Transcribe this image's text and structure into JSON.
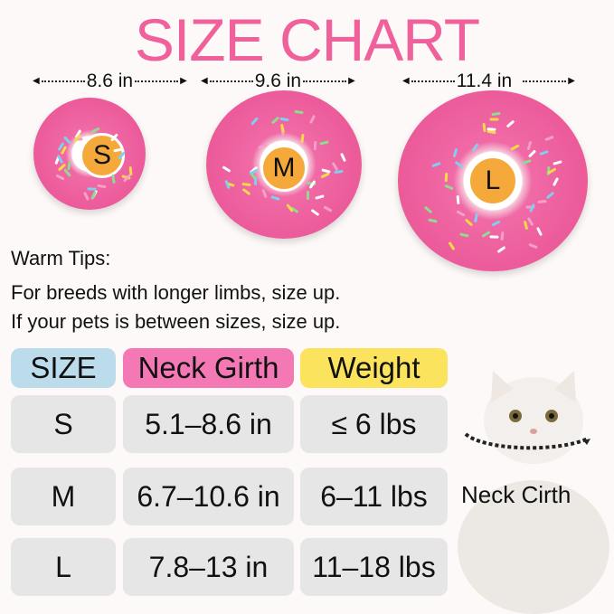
{
  "title": "SIZE CHART",
  "dimensions": [
    "8.6 in",
    "9.6 in",
    "11.4 in"
  ],
  "sizes": [
    "S",
    "M",
    "L"
  ],
  "tips": {
    "heading": "Warm Tips:",
    "lines": [
      "For breeds with longer limbs, size up.",
      "If your pets is between sizes, size up."
    ]
  },
  "table": {
    "headers": [
      "SIZE",
      "Neck Girth",
      "Weight"
    ],
    "header_colors": [
      "#bcdcec",
      "#f478b4",
      "#fbe35e"
    ],
    "rows": [
      [
        "S",
        "5.1–8.6 in",
        "≤ 6 lbs"
      ],
      [
        "M",
        "6.7–10.6 in",
        "6–11 lbs"
      ],
      [
        "L",
        "7.8–13 in",
        "11–18 lbs"
      ]
    ]
  },
  "cat_label": "Neck Cirth",
  "colors": {
    "title": "#f0609a",
    "donut": "#ec5a9a",
    "badge": "#f6a93b",
    "cell": "#e6e6e6"
  }
}
